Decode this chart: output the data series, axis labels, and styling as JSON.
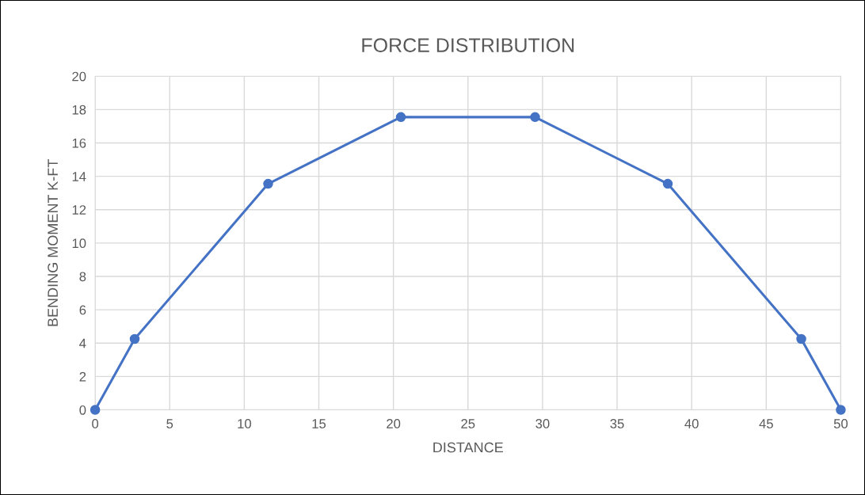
{
  "chart_data": {
    "type": "line",
    "title": "FORCE DISTRIBUTION",
    "xlabel": "DISTANCE",
    "ylabel": "BENDING MOMENT K-FT",
    "series": [
      {
        "color": "#4472c4",
        "x": [
          0,
          2.65,
          11.6,
          20.5,
          29.5,
          38.4,
          47.35,
          50
        ],
        "values": [
          0,
          4.25,
          13.55,
          17.55,
          17.55,
          13.55,
          4.25,
          0
        ]
      }
    ],
    "xlim": [
      0,
      50
    ],
    "xticks": [
      0,
      5,
      10,
      15,
      20,
      25,
      30,
      35,
      40,
      45,
      50
    ],
    "ylim": [
      0,
      20
    ],
    "yticks": [
      0,
      2,
      4,
      6,
      8,
      10,
      12,
      14,
      16,
      18,
      20
    ],
    "grid": true,
    "marker": "circle",
    "line_style": "solid"
  }
}
